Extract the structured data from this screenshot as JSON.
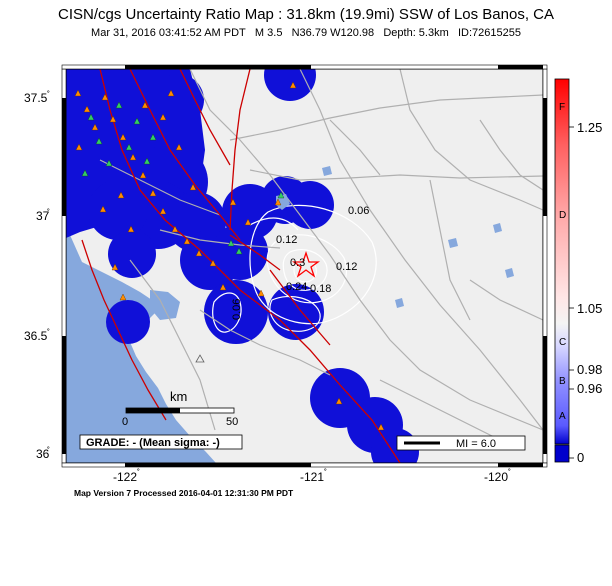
{
  "header": {
    "title": "CISN/cgs Uncertainty Ratio Map : 31.8km (19.9mi) SSW of Los Banos, CA",
    "date": "Mar 31, 2016 03:41:52 AM PDT",
    "magnitude": "M 3.5",
    "location": "N36.79 W120.98",
    "depth": "Depth: 5.3km",
    "event_id": "ID:72615255"
  },
  "axes": {
    "y_ticks": [
      "37.5",
      "37",
      "36.5",
      "36"
    ],
    "x_ticks": [
      "-122",
      "-121",
      "-120"
    ],
    "degree_symbol": "˚"
  },
  "contours": {
    "labels": [
      "0.06",
      "0.12",
      "0.3",
      "0.12",
      "0.24",
      "0.18",
      "0.06"
    ]
  },
  "scale_bar": {
    "unit": "km",
    "start": "0",
    "end": "50"
  },
  "grade_box": {
    "text": "GRADE: - (Mean sigma: -)"
  },
  "mi_legend": {
    "text": "MI = 6.0"
  },
  "colorbar": {
    "letter_grades": [
      "F",
      "D",
      "C",
      "B",
      "A"
    ],
    "values": [
      "1.25",
      "1.05",
      "0.98",
      "0.96",
      "0"
    ],
    "colors": {
      "top": "#ff0000",
      "upper": "#ffaaaa",
      "middle": "#f4f4f4",
      "lower": "#9090ff",
      "bottom": "#0000cc"
    }
  },
  "footer": {
    "text": "Map Version 7 Processed 2016-04-01 12:31:30 PM PDT"
  },
  "colors": {
    "land": "#efefef",
    "ocean": "#86a8dd",
    "blue_zone": "#1010d8",
    "fault": "#cc0000",
    "road": "#b0b0b0",
    "station_orange": "#ff8c00",
    "station_green": "#33cc66",
    "epicenter": "#ff0000"
  }
}
